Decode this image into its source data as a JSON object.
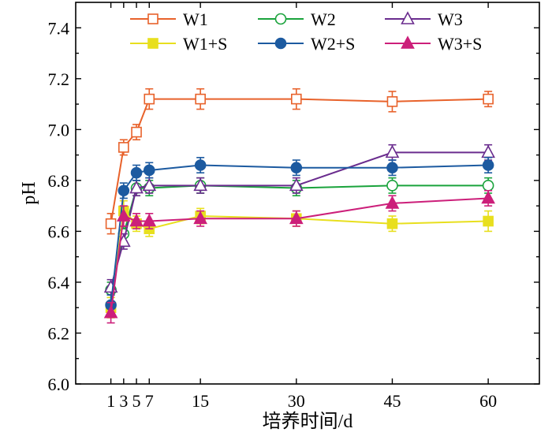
{
  "chart_data": {
    "type": "line",
    "title": "",
    "xlabel": "培养时间/d",
    "ylabel": "pH",
    "x": [
      1,
      3,
      5,
      7,
      15,
      30,
      45,
      60
    ],
    "x_ticks": [
      1,
      3,
      5,
      7,
      15,
      30,
      45,
      60
    ],
    "xlim": [
      -4.5,
      68
    ],
    "ylim": [
      6.0,
      7.5
    ],
    "y_ticks": [
      6.0,
      6.2,
      6.4,
      6.6,
      6.8,
      7.0,
      7.2,
      7.4
    ],
    "grid": false,
    "legend_position": "top",
    "series": [
      {
        "name": "W1",
        "color": "#e8622b",
        "marker": "square",
        "filled": false,
        "values": [
          6.63,
          6.93,
          6.99,
          7.12,
          7.12,
          7.12,
          7.11,
          7.12
        ],
        "errors": [
          0.04,
          0.03,
          0.03,
          0.04,
          0.04,
          0.04,
          0.04,
          0.03
        ]
      },
      {
        "name": "W2",
        "color": "#1aa33c",
        "marker": "circle",
        "filled": false,
        "values": [
          6.37,
          6.59,
          6.77,
          6.77,
          6.78,
          6.77,
          6.78,
          6.78
        ],
        "errors": [
          0.03,
          0.03,
          0.03,
          0.03,
          0.03,
          0.03,
          0.03,
          0.03
        ]
      },
      {
        "name": "W3",
        "color": "#6a2c8e",
        "marker": "triangle",
        "filled": false,
        "values": [
          6.38,
          6.56,
          6.77,
          6.78,
          6.78,
          6.78,
          6.91,
          6.91
        ],
        "errors": [
          0.03,
          0.03,
          0.03,
          0.03,
          0.03,
          0.03,
          0.03,
          0.03
        ]
      },
      {
        "name": "W1+S",
        "color": "#e8df1e",
        "marker": "square",
        "filled": true,
        "values": [
          6.3,
          6.68,
          6.63,
          6.61,
          6.66,
          6.65,
          6.63,
          6.64
        ],
        "errors": [
          0.04,
          0.04,
          0.03,
          0.03,
          0.03,
          0.03,
          0.03,
          0.04
        ]
      },
      {
        "name": "W2+S",
        "color": "#1c5aa0",
        "marker": "circle",
        "filled": true,
        "values": [
          6.31,
          6.76,
          6.83,
          6.84,
          6.86,
          6.85,
          6.85,
          6.86
        ],
        "errors": [
          0.04,
          0.03,
          0.03,
          0.03,
          0.03,
          0.03,
          0.03,
          0.03
        ]
      },
      {
        "name": "W3+S",
        "color": "#cc1f7a",
        "marker": "triangle",
        "filled": true,
        "values": [
          6.28,
          6.66,
          6.64,
          6.64,
          6.65,
          6.65,
          6.71,
          6.73
        ],
        "errors": [
          0.04,
          0.04,
          0.03,
          0.03,
          0.03,
          0.03,
          0.03,
          0.03
        ]
      }
    ]
  }
}
